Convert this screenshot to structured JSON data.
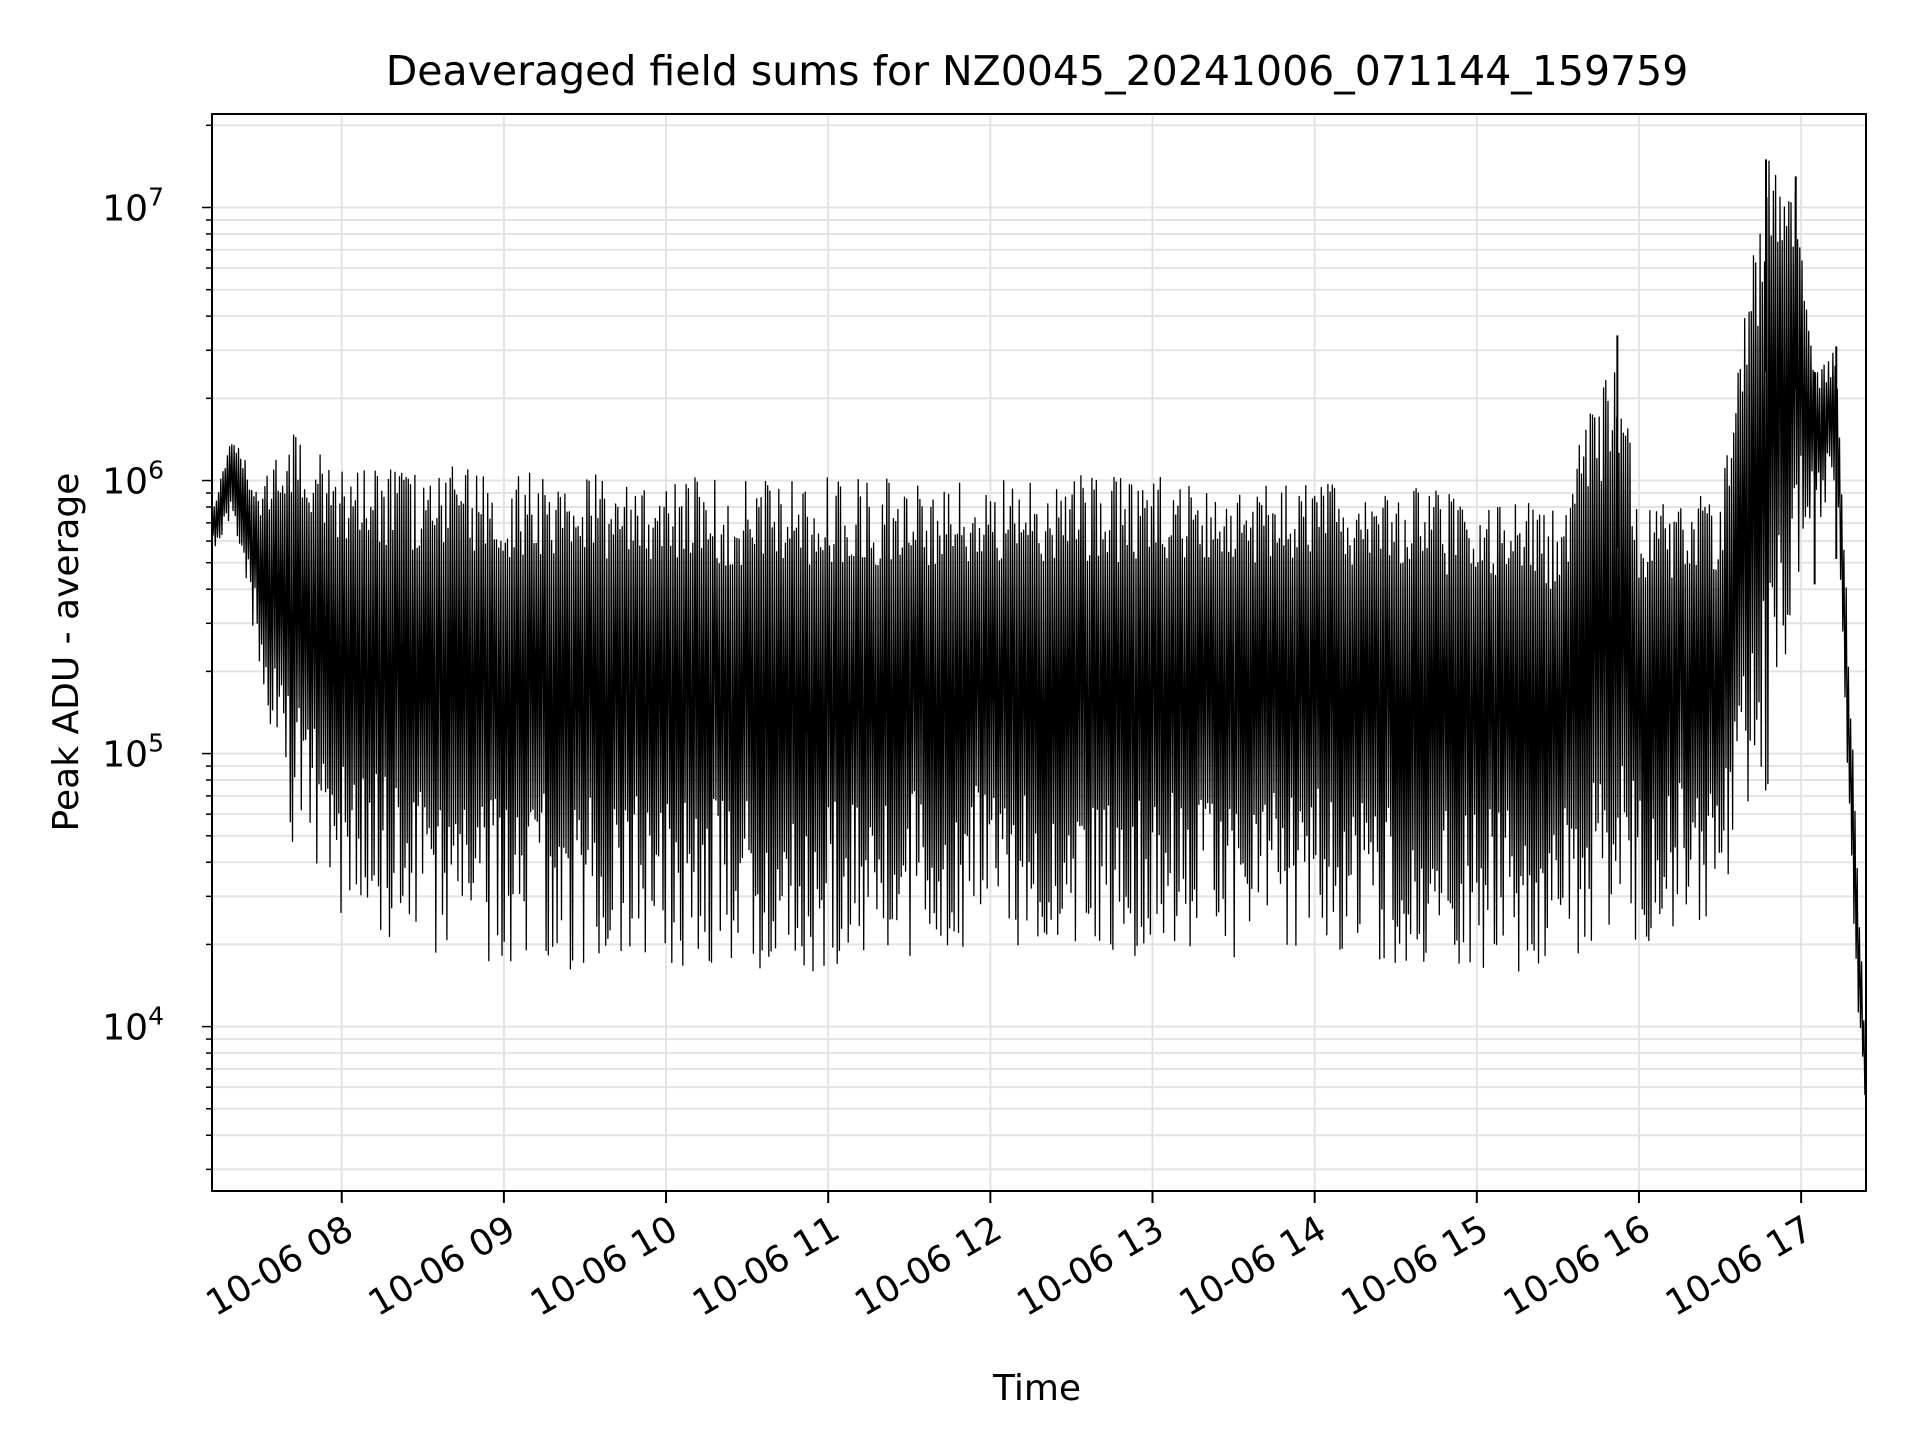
{
  "chart_data": {
    "type": "line",
    "title": "Deaveraged field sums for NZ0045_20241006_071144_159759",
    "xlabel": "Time",
    "ylabel": "Peak ADU - average",
    "y_scale": "log",
    "ylim": [
      2500,
      22000000
    ],
    "xlim": [
      "2024-10-06 07:12",
      "2024-10-06 17:24"
    ],
    "x_ticks": [
      {
        "value": "2024-10-06 08:00",
        "label": "10-06 08"
      },
      {
        "value": "2024-10-06 09:00",
        "label": "10-06 09"
      },
      {
        "value": "2024-10-06 10:00",
        "label": "10-06 10"
      },
      {
        "value": "2024-10-06 11:00",
        "label": "10-06 11"
      },
      {
        "value": "2024-10-06 12:00",
        "label": "10-06 12"
      },
      {
        "value": "2024-10-06 13:00",
        "label": "10-06 13"
      },
      {
        "value": "2024-10-06 14:00",
        "label": "10-06 14"
      },
      {
        "value": "2024-10-06 15:00",
        "label": "10-06 15"
      },
      {
        "value": "2024-10-06 16:00",
        "label": "10-06 16"
      },
      {
        "value": "2024-10-06 17:00",
        "label": "10-06 17"
      }
    ],
    "y_ticks": [
      {
        "value": 10000,
        "base": "10",
        "exp": "4"
      },
      {
        "value": 100000,
        "base": "10",
        "exp": "5"
      },
      {
        "value": 1000000,
        "base": "10",
        "exp": "6"
      },
      {
        "value": 10000000,
        "base": "10",
        "exp": "7"
      }
    ],
    "grid": true,
    "line_color": "#000000",
    "grid_color": "#e3e3e3",
    "series": [
      {
        "description_key": "upper envelope (peaks)",
        "x": [
          "2024-10-06 07:12",
          "2024-10-06 07:20",
          "2024-10-06 07:30",
          "2024-10-06 07:40",
          "2024-10-06 07:50",
          "2024-10-06 08:00",
          "2024-10-06 08:30",
          "2024-10-06 09:00",
          "2024-10-06 09:30",
          "2024-10-06 10:00",
          "2024-10-06 10:30",
          "2024-10-06 11:00",
          "2024-10-06 11:30",
          "2024-10-06 12:00",
          "2024-10-06 12:30",
          "2024-10-06 13:00",
          "2024-10-06 13:30",
          "2024-10-06 14:00",
          "2024-10-06 14:30",
          "2024-10-06 15:00",
          "2024-10-06 15:30",
          "2024-10-06 15:52",
          "2024-10-06 16:00",
          "2024-10-06 16:30",
          "2024-10-06 16:47",
          "2024-10-06 16:58",
          "2024-10-06 17:05",
          "2024-10-06 17:13",
          "2024-10-06 17:24"
        ],
        "y": [
          800000,
          1500000,
          900000,
          1700000,
          1300000,
          1100000,
          1150000,
          1100000,
          1100000,
          1050000,
          1000000,
          1050000,
          1000000,
          1000000,
          1050000,
          1050000,
          1000000,
          1000000,
          950000,
          900000,
          800000,
          3400000,
          800000,
          900000,
          15000000,
          13000000,
          2500000,
          3100000,
          7000
        ]
      },
      {
        "description_key": "lower envelope (troughs)",
        "x": [
          "2024-10-06 07:12",
          "2024-10-06 07:20",
          "2024-10-06 07:30",
          "2024-10-06 07:40",
          "2024-10-06 07:50",
          "2024-10-06 08:00",
          "2024-10-06 08:30",
          "2024-10-06 09:00",
          "2024-10-06 09:30",
          "2024-10-06 10:00",
          "2024-10-06 10:30",
          "2024-10-06 11:00",
          "2024-10-06 11:30",
          "2024-10-06 12:00",
          "2024-10-06 12:30",
          "2024-10-06 13:00",
          "2024-10-06 13:30",
          "2024-10-06 14:00",
          "2024-10-06 14:30",
          "2024-10-06 15:00",
          "2024-10-06 15:30",
          "2024-10-06 16:00",
          "2024-10-06 16:30",
          "2024-10-06 16:47",
          "2024-10-06 17:00",
          "2024-10-06 17:13",
          "2024-10-06 17:20",
          "2024-10-06 17:24"
        ],
        "y": [
          550000,
          700000,
          200000,
          50000,
          35000,
          25000,
          18000,
          17000,
          16000,
          17000,
          16000,
          15000,
          18000,
          20000,
          16000,
          17000,
          18000,
          19000,
          17000,
          15000,
          16000,
          20000,
          25000,
          60000,
          500000,
          1000000,
          15000,
          5000
        ]
      }
    ]
  }
}
